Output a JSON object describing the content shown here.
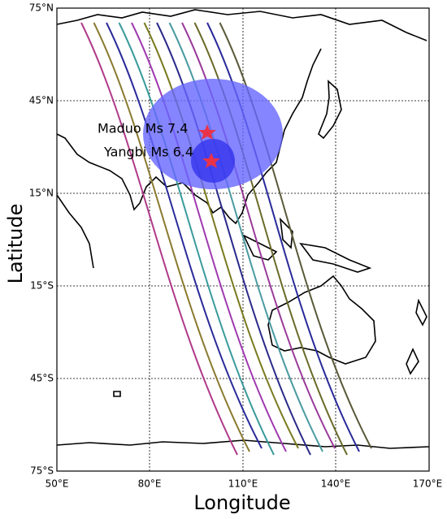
{
  "map": {
    "xlabel": "Longitude",
    "ylabel": "Latitude",
    "xticks": [
      "50°E",
      "80°E",
      "110°E",
      "140°E",
      "170°E"
    ],
    "yticks": [
      "75°N",
      "45°N",
      "15°N",
      "15°S",
      "45°S",
      "75°S"
    ],
    "annotations": [
      "Maduo Ms 7.4",
      "Yangbi Ms 6.4"
    ]
  }
}
